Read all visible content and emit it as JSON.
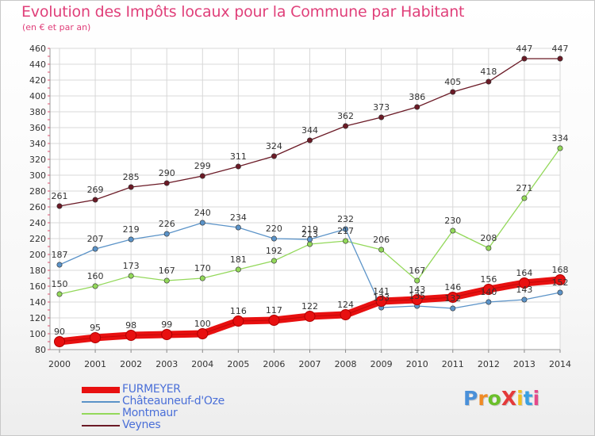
{
  "title": "Evolution des Impôts locaux pour la Commune par Habitant",
  "subtitle": "(en € et par an)",
  "logo": {
    "text": "ProXiti",
    "colors": [
      "#4a90d9",
      "#f08a24",
      "#6abf2a",
      "#e43a3a",
      "#f0c020",
      "#3aa0e0",
      "#e44a8a"
    ]
  },
  "chart_data": {
    "type": "line",
    "x": [
      "2000",
      "2001",
      "2002",
      "2003",
      "2004",
      "2005",
      "2006",
      "2007",
      "2008",
      "2009",
      "2010",
      "2011",
      "2012",
      "2013",
      "2014"
    ],
    "ylim": [
      80,
      460
    ],
    "yticks": [
      80,
      100,
      120,
      140,
      160,
      180,
      200,
      220,
      240,
      260,
      280,
      300,
      320,
      340,
      360,
      380,
      400,
      420,
      440,
      460
    ],
    "grid": true,
    "legend_position": "bottom-left",
    "series": [
      {
        "name": "FURMEYER",
        "color": "#e81010",
        "emphasis": true,
        "values": [
          90,
          95,
          98,
          99,
          100,
          116,
          117,
          122,
          124,
          141,
          143,
          146,
          156,
          164,
          168
        ]
      },
      {
        "name": "Châteauneuf-d'Oze",
        "color": "#5b93c8",
        "values": [
          187,
          207,
          219,
          226,
          240,
          234,
          220,
          219,
          232,
          133,
          135,
          132,
          140,
          143,
          152
        ]
      },
      {
        "name": "Montmaur",
        "color": "#93d85a",
        "values": [
          150,
          160,
          173,
          167,
          170,
          181,
          192,
          213,
          217,
          206,
          167,
          230,
          208,
          271,
          334
        ]
      },
      {
        "name": "Veynes",
        "color": "#6b1a26",
        "values": [
          261,
          269,
          285,
          290,
          299,
          311,
          324,
          344,
          362,
          373,
          386,
          405,
          418,
          447,
          447
        ]
      }
    ],
    "data_labels": {
      "FURMEYER": [
        "90",
        "95",
        "98",
        "99",
        "100",
        "116",
        "117",
        "122",
        "124",
        "141",
        "143",
        "146",
        "156",
        "164",
        "168"
      ],
      "Châteauneuf-d'Oze": [
        "187",
        "207",
        "219",
        "226",
        "240",
        "234",
        "220",
        "219",
        "232",
        "133",
        "135",
        "132",
        "140",
        "143",
        "152"
      ],
      "Montmaur": [
        "150",
        "160",
        "173",
        "167",
        "170",
        "181",
        "192",
        "213",
        "217",
        "206",
        "167",
        "230",
        "208",
        "271",
        "334"
      ],
      "Veynes": [
        "261",
        "269",
        "285",
        "290",
        "299",
        "311",
        "324",
        "344",
        "362",
        "373",
        "386",
        "405",
        "418",
        "447",
        "447"
      ]
    }
  }
}
